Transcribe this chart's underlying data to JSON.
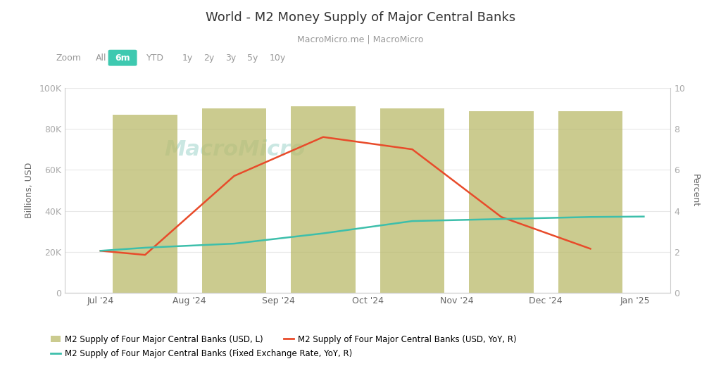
{
  "title": "World - M2 Money Supply of Major Central Banks",
  "subtitle": "MacroMicro.me | MacroMicro",
  "zoom_labels": [
    "Zoom",
    "All",
    "6m",
    "YTD",
    "1y",
    "2y",
    "3y",
    "5y",
    "10y"
  ],
  "zoom_active": "6m",
  "bar_months": [
    "Jul '24",
    "Aug '24",
    "Sep '24",
    "Oct '24",
    "Nov '24",
    "Dec '24"
  ],
  "bar_x": [
    0,
    1,
    2,
    3,
    4,
    5
  ],
  "bar_values": [
    87000,
    90000,
    91000,
    90000,
    88500,
    88500
  ],
  "bar_color": "#baba6a",
  "bar_alpha": 0.75,
  "line1_x": [
    -0.5,
    0,
    1,
    2,
    3,
    4,
    5
  ],
  "line1_y": [
    2.05,
    1.85,
    5.7,
    7.6,
    7.0,
    3.7,
    2.15
  ],
  "line1_color": "#e84b2a",
  "line1_label": "M2 Supply of Four Major Central Banks (USD, YoY, R)",
  "line2_x": [
    -0.5,
    0,
    1,
    2,
    3,
    4,
    5,
    5.6
  ],
  "line2_y": [
    2.05,
    2.2,
    2.4,
    2.9,
    3.5,
    3.6,
    3.7,
    3.72
  ],
  "line2_color": "#3dbfab",
  "line2_label": "M2 Supply of Four Major Central Banks (Fixed Exchange Rate, YoY, R)",
  "bar_label": "M2 Supply of Four Major Central Banks (USD, L)",
  "xtick_labels": [
    "Jul '24",
    "Aug '24",
    "Sep '24",
    "Oct '24",
    "Nov '24",
    "Dec '24",
    "Jan '25"
  ],
  "xtick_positions": [
    -0.5,
    0.5,
    1.5,
    2.5,
    3.5,
    4.5,
    5.5
  ],
  "xlim": [
    -0.9,
    5.9
  ],
  "ylim_left": [
    0,
    100000
  ],
  "ylim_right": [
    0,
    10
  ],
  "yticks_left": [
    0,
    20000,
    40000,
    60000,
    80000,
    100000
  ],
  "ytick_left_labels": [
    "0",
    "20K",
    "40K",
    "60K",
    "80K",
    "100K"
  ],
  "yticks_right": [
    0,
    2,
    4,
    6,
    8,
    10
  ],
  "ylabel_left": "Billions, USD",
  "ylabel_right": "Percent",
  "background_color": "#ffffff",
  "grid_color": "#e8e8e8",
  "watermark_text": "MacroMicro",
  "watermark_color": "#a8d8d0",
  "bar_width": 0.72
}
